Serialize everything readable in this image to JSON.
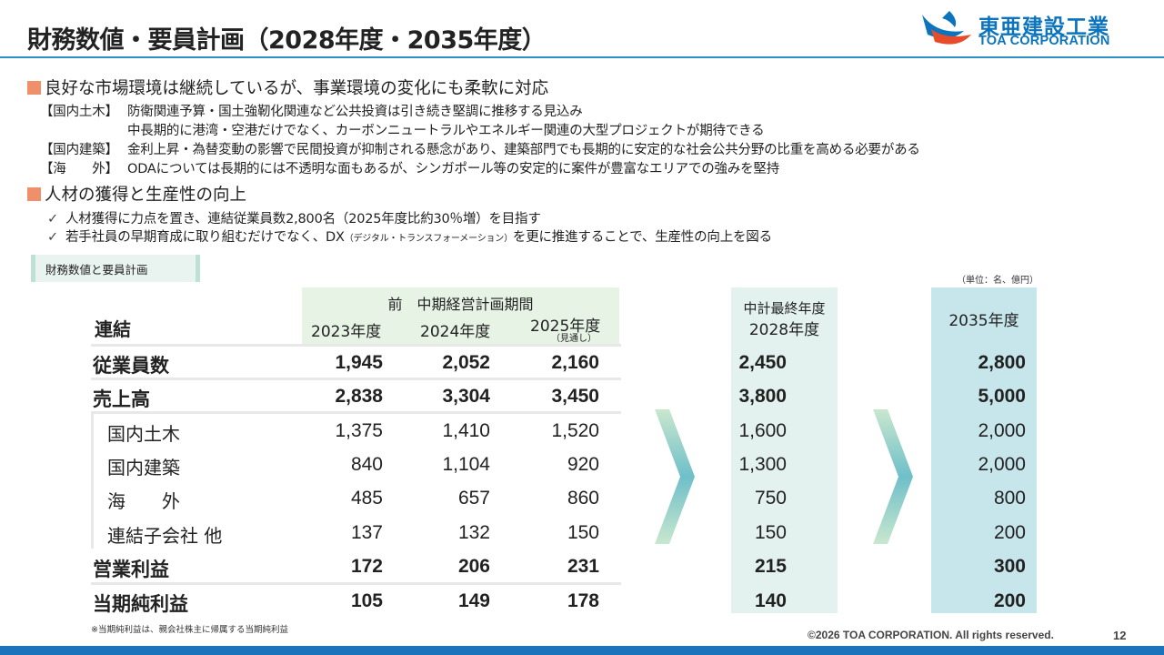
{
  "title": "財務数値・要員計画（2028年度・2035年度）",
  "logo": {
    "jp": "東亜建設工業",
    "en": "TOA CORPORATION"
  },
  "section1": {
    "heading": "良好な市場環境は継続しているが、事業環境の変化にも柔軟に対応",
    "lines": [
      {
        "label": "【国内土木】",
        "text": "防衛関連予算・国土強靭化関連など公共投資は引き続き堅調に推移する見込み"
      },
      {
        "label": "",
        "text": "中長期的に港湾・空港だけでなく、カーボンニュートラルやエネルギー関連の大型プロジェクトが期待できる"
      },
      {
        "label": "【国内建築】",
        "text": "金利上昇・為替変動の影響で民間投資が抑制される懸念があり、建築部門でも長期的に安定的な社会公共分野の比重を高める必要がある"
      },
      {
        "label": "【海　　外】",
        "text": "ODAについては長期的には不透明な面もあるが、シンガポール等の安定的に案件が豊富なエリアでの強みを堅持"
      }
    ]
  },
  "section2": {
    "heading": "人材の獲得と生産性の向上",
    "check_mark": "✓",
    "item1": "人材獲得に力点を置き、連結従業員数2,800名（2025年度比約30％増）を目指す",
    "item2_a": "若手社員の早期育成に取り組むだけでなく、DX",
    "item2_small": "（デジタル・トランスフォーメーション）",
    "item2_b": "を更に推進することで、生産性の向上を図る"
  },
  "table": {
    "tag": "財務数値と要員計画",
    "unit": "（単位：名、億円）",
    "corner_label": "連結",
    "header_main": "前　中期経営計画期間",
    "col_2023": "2023年度",
    "col_2024": "2024年度",
    "col_2025": "2025年度",
    "col_2025_note": "（見通し）",
    "col_2028_a": "中計最終年度",
    "col_2028_b": "2028年度",
    "col_2035": "2035年度",
    "rows": [
      {
        "label": "従業員数",
        "v2023": "1,945",
        "v2024": "2,052",
        "v2025": "2,160",
        "v2028": "2,450",
        "v2035": "2,800"
      },
      {
        "label": "売上高",
        "v2023": "2,838",
        "v2024": "3,304",
        "v2025": "3,450",
        "v2028": "3,800",
        "v2035": "5,000"
      },
      {
        "label": "国内土木",
        "v2023": "1,375",
        "v2024": "1,410",
        "v2025": "1,520",
        "v2028": "1,600",
        "v2035": "2,000"
      },
      {
        "label": "国内建築",
        "v2023": "840",
        "v2024": "1,104",
        "v2025": "920",
        "v2028": "1,300",
        "v2035": "2,000"
      },
      {
        "label": "海　　外",
        "v2023": "485",
        "v2024": "657",
        "v2025": "860",
        "v2028": "750",
        "v2035": "800"
      },
      {
        "label": "連結子会社 他",
        "v2023": "137",
        "v2024": "132",
        "v2025": "150",
        "v2028": "150",
        "v2035": "200"
      },
      {
        "label": "営業利益",
        "v2023": "172",
        "v2024": "206",
        "v2025": "231",
        "v2028": "215",
        "v2035": "300"
      },
      {
        "label": "当期純利益",
        "v2023": "105",
        "v2024": "149",
        "v2025": "178",
        "v2028": "140",
        "v2035": "200"
      }
    ],
    "footnote": "※当期純利益は、親会社株主に帰属する当期純利益"
  },
  "footer": {
    "copyright": "©2026 TOA CORPORATION. All rights reserved.",
    "page": "12"
  },
  "colors": {
    "accent": "#2f90c8",
    "bullet": "#f0906a",
    "bottom_bar": "#1a73bb"
  }
}
